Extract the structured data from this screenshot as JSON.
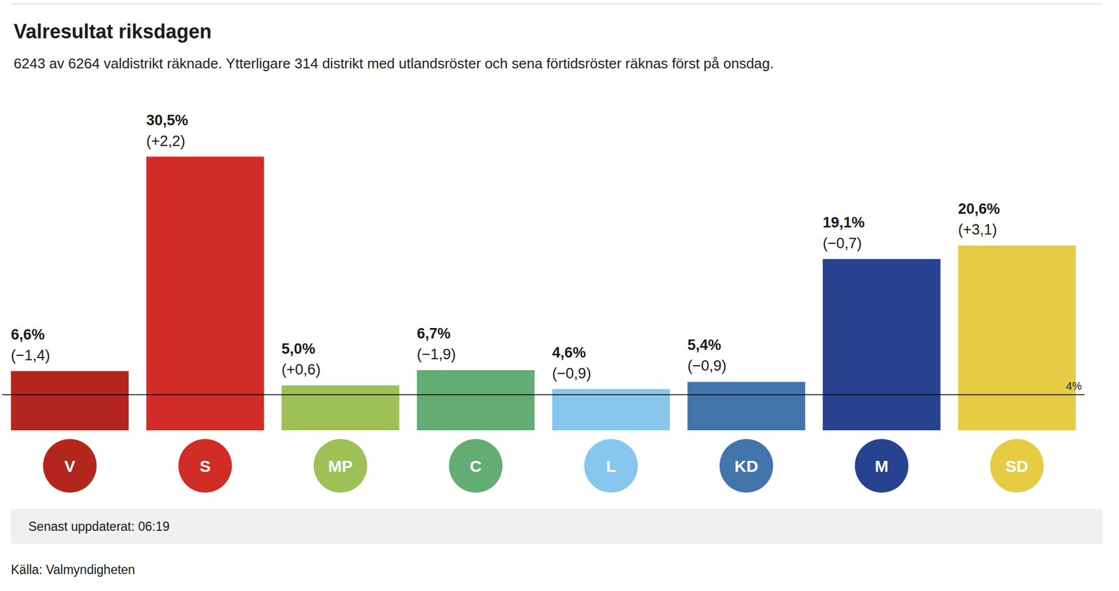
{
  "chart_data": {
    "type": "bar",
    "title": "Valresultat riksdagen",
    "subtitle": "6243 av 6264 valdistrikt räknade. Ytterligare 314 distrikt med utlandsröster och sena förtidsröster räknas först på onsdag.",
    "categories": [
      "V",
      "S",
      "MP",
      "C",
      "L",
      "KD",
      "M",
      "SD"
    ],
    "values": [
      6.6,
      30.5,
      5.0,
      6.7,
      4.6,
      5.4,
      19.1,
      20.6
    ],
    "value_labels": [
      "6,6%",
      "30,5%",
      "5,0%",
      "6,7%",
      "4,6%",
      "5,4%",
      "19,1%",
      "20,6%"
    ],
    "change_labels": [
      "(−1,4)",
      "(+2,2)",
      "(+0,6)",
      "(−1,9)",
      "(−0,9)",
      "(−0,9)",
      "(−0,7)",
      "(+3,1)"
    ],
    "colors": [
      "#b3261e",
      "#d12d26",
      "#9dc157",
      "#63ac74",
      "#87c7ee",
      "#4275ac",
      "#27428f",
      "#e6cc45"
    ],
    "ylim": [
      0,
      32
    ],
    "reference_line": {
      "value": 4,
      "label": "4%"
    },
    "data_labels": true,
    "tick_labels": "x",
    "grid": false,
    "updated": "Senast uppdaterat: 06:19",
    "source": "Källa: Valmyndigheten"
  }
}
